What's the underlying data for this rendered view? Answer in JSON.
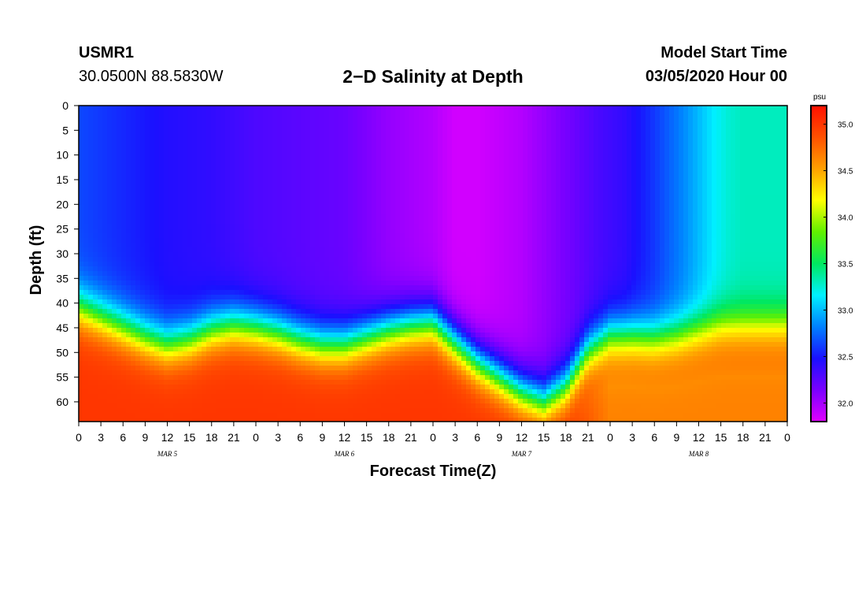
{
  "header": {
    "station": "USMR1",
    "coordinates": "30.0500N 88.5830W",
    "title": "2−D Salinity at Depth",
    "model_start_label": "Model Start Time",
    "model_start_value": "03/05/2020 Hour 00"
  },
  "chart_data": {
    "type": "heatmap",
    "title": "2−D Salinity at Depth",
    "xlabel": "Forecast Time(Z)",
    "ylabel": "Depth (ft)",
    "x_hours_range": [
      0,
      96
    ],
    "y_range": [
      0,
      64
    ],
    "y_reversed": true,
    "x_tick_hours": [
      0,
      3,
      6,
      9,
      12,
      15,
      18,
      21,
      24,
      27,
      30,
      33,
      36,
      39,
      42,
      45,
      48,
      51,
      54,
      57,
      60,
      63,
      66,
      69,
      72,
      75,
      78,
      81,
      84,
      87,
      90,
      93,
      96
    ],
    "x_tick_labels": [
      "0",
      "3",
      "6",
      "9",
      "12",
      "15",
      "18",
      "21",
      "0",
      "3",
      "6",
      "9",
      "12",
      "15",
      "18",
      "21",
      "0",
      "3",
      "6",
      "9",
      "12",
      "15",
      "18",
      "21",
      "0",
      "3",
      "6",
      "9",
      "12",
      "15",
      "18",
      "21",
      "0"
    ],
    "day_labels": [
      {
        "hour": 12,
        "label": "MAR 5"
      },
      {
        "hour": 36,
        "label": "MAR 6"
      },
      {
        "hour": 60,
        "label": "MAR 7"
      },
      {
        "hour": 84,
        "label": "MAR 8"
      }
    ],
    "y_ticks": [
      0,
      5,
      10,
      15,
      20,
      25,
      30,
      35,
      40,
      45,
      50,
      55,
      60
    ],
    "y_tick_labels": [
      "0",
      "5",
      "10",
      "15",
      "20",
      "25",
      "30",
      "35",
      "40",
      "45",
      "50",
      "55",
      "60"
    ],
    "colorbar": {
      "unit": "psu",
      "range": [
        31.8,
        35.2
      ],
      "ticks": [
        32.0,
        32.5,
        33.0,
        33.5,
        34.0,
        34.5,
        35.0
      ],
      "tick_labels": [
        "32.0",
        "32.5",
        "33.0",
        "33.5",
        "34.0",
        "34.5",
        "35.0"
      ],
      "colors": [
        "#e000ff",
        "#7a00ff",
        "#1a10ff",
        "#0080ff",
        "#00f0ff",
        "#00e860",
        "#60f000",
        "#ffff00",
        "#ffa000",
        "#ff5000",
        "#ff1000"
      ]
    },
    "halocline": {
      "hours": [
        0,
        3,
        6,
        9,
        12,
        15,
        18,
        21,
        24,
        27,
        30,
        33,
        36,
        39,
        42,
        45,
        48,
        51,
        54,
        57,
        60,
        63,
        66,
        69,
        72,
        75,
        78,
        81,
        84,
        87,
        90,
        93,
        96
      ],
      "depth_ft": [
        41,
        43,
        45,
        47,
        48.5,
        47.5,
        45.5,
        44.5,
        45,
        46,
        47.5,
        48.5,
        48.5,
        47,
        45.5,
        44.5,
        44,
        48,
        52,
        55,
        58,
        60,
        57,
        50,
        47,
        47,
        47.5,
        47,
        46,
        45,
        45,
        45,
        45
      ]
    },
    "surface_salinity_psu": {
      "hours": [
        0,
        6,
        12,
        18,
        24,
        30,
        36,
        42,
        48,
        51,
        54,
        57,
        60,
        63,
        66,
        70,
        74,
        78,
        82,
        84,
        86,
        88,
        90,
        96
      ],
      "values": [
        32.65,
        32.55,
        32.45,
        32.4,
        32.3,
        32.25,
        32.2,
        32.05,
        31.95,
        31.85,
        31.85,
        31.9,
        31.95,
        32.05,
        32.15,
        32.3,
        32.4,
        32.6,
        32.85,
        33.0,
        33.15,
        33.25,
        33.3,
        33.3
      ]
    },
    "bottom_salinity_psu": 35.0
  }
}
